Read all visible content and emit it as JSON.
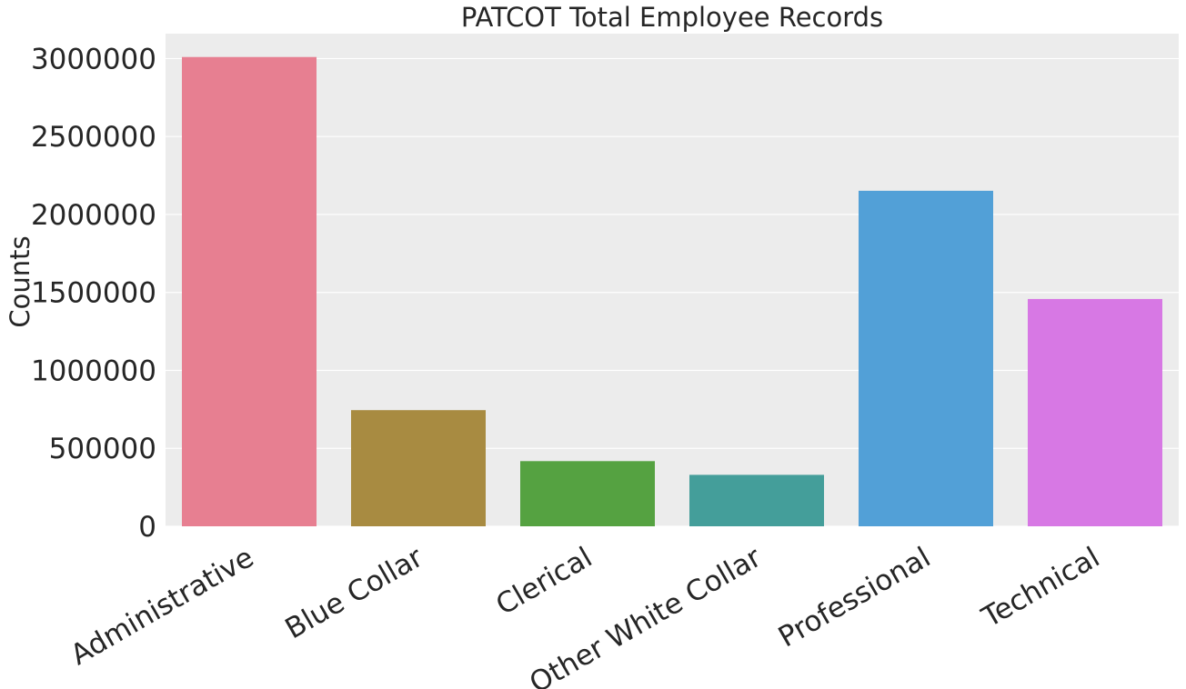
{
  "chart_data": {
    "type": "bar",
    "title": "PATCOT Total Employee Records",
    "xlabel": "",
    "ylabel": "Counts",
    "categories": [
      "Administrative",
      "Blue Collar",
      "Clerical",
      "Other White Collar",
      "Professional",
      "Technical"
    ],
    "values": [
      3010000,
      745000,
      418000,
      330000,
      2152000,
      1458000
    ],
    "colors": [
      "#e77f91",
      "#a88b41",
      "#55a241",
      "#449e9a",
      "#52a0d7",
      "#d778e4"
    ],
    "yticks": [
      0,
      500000,
      1000000,
      1500000,
      2000000,
      2500000,
      3000000
    ],
    "ytick_labels": [
      "0",
      "500000",
      "1000000",
      "1500000",
      "2000000",
      "2500000",
      "3000000"
    ],
    "ylim": [
      0,
      3160000
    ],
    "grid": true,
    "background": "#ececec",
    "grid_color": "#ffffff"
  }
}
